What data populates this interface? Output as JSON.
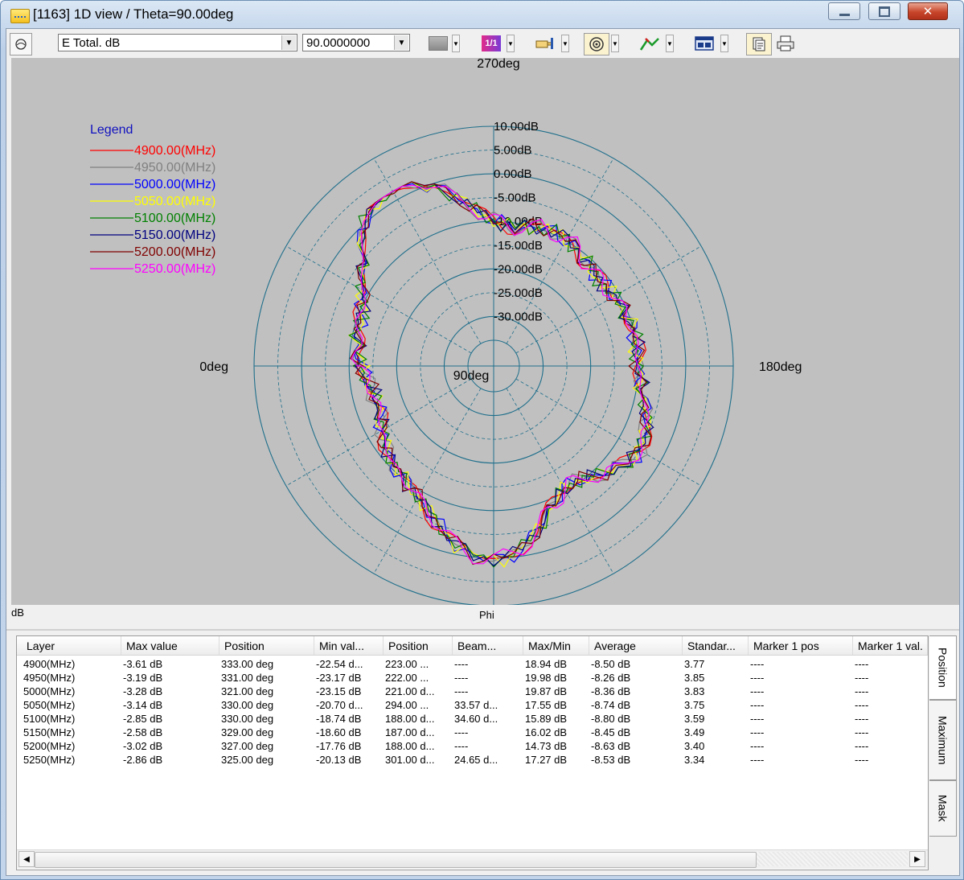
{
  "window": {
    "title": "[1163] 1D view / Theta=90.00deg"
  },
  "toolbar": {
    "quantity_value": "E Total. dB",
    "angle_value": "90.0000000",
    "scale_label": "1/1"
  },
  "plot": {
    "top_label": "270deg",
    "bottom_label": "90deg",
    "left_label": "0deg",
    "right_label": "180deg",
    "ring_labels": [
      "10.00dB",
      "5.00dB",
      "0.00dB",
      "-5.00dB",
      "-10.00dB",
      "-15.00dB",
      "-20.00dB",
      "-25.00dB",
      "-30.00dB"
    ],
    "legend_title": "Legend",
    "background_color": "#c0c0c0",
    "grid_color": "#1f6f8b"
  },
  "chart_data": {
    "type": "polar-line",
    "angle_axis": "Phi",
    "radial_unit": "dB",
    "radial_range": [
      -35,
      10
    ],
    "series": [
      {
        "name": "4900.00(MHz)",
        "color": "#ff0000"
      },
      {
        "name": "4950.00(MHz)",
        "color": "#808080"
      },
      {
        "name": "5000.00(MHz)",
        "color": "#0000ff"
      },
      {
        "name": "5050.00(MHz)",
        "color": "#ffff00"
      },
      {
        "name": "5100.00(MHz)",
        "color": "#008000"
      },
      {
        "name": "5150.00(MHz)",
        "color": "#000080"
      },
      {
        "name": "5200.00(MHz)",
        "color": "#800000"
      },
      {
        "name": "5250.00(MHz)",
        "color": "#ff00ff"
      }
    ]
  },
  "status": {
    "unit_label": "dB",
    "axis_label": "Phi"
  },
  "table": {
    "columns": [
      "Layer",
      "Max value",
      "Position",
      "Min val...",
      "Position",
      "Beam...",
      "Max/Min",
      "Average",
      "Standar...",
      "Marker 1 pos",
      "Marker 1 val."
    ],
    "rows": [
      [
        "4900(MHz)",
        "-3.61 dB",
        "333.00 deg",
        "-22.54 d...",
        "223.00 ...",
        "----",
        "18.94 dB",
        "-8.50 dB",
        "3.77",
        "----",
        "----"
      ],
      [
        "4950(MHz)",
        "-3.19 dB",
        "331.00 deg",
        "-23.17 dB",
        "222.00 ...",
        "----",
        "19.98 dB",
        "-8.26 dB",
        "3.85",
        "----",
        "----"
      ],
      [
        "5000(MHz)",
        "-3.28 dB",
        "321.00 deg",
        "-23.15 dB",
        "221.00 d...",
        "----",
        "19.87 dB",
        "-8.36 dB",
        "3.83",
        "----",
        "----"
      ],
      [
        "5050(MHz)",
        "-3.14 dB",
        "330.00 deg",
        "-20.70 d...",
        "294.00 ...",
        "33.57 d...",
        "17.55 dB",
        "-8.74 dB",
        "3.75",
        "----",
        "----"
      ],
      [
        "5100(MHz)",
        "-2.85 dB",
        "330.00 deg",
        "-18.74 dB",
        "188.00 d...",
        "34.60 d...",
        "15.89 dB",
        "-8.80 dB",
        "3.59",
        "----",
        "----"
      ],
      [
        "5150(MHz)",
        "-2.58 dB",
        "329.00 deg",
        "-18.60 dB",
        "187.00 d...",
        "----",
        "16.02 dB",
        "-8.45 dB",
        "3.49",
        "----",
        "----"
      ],
      [
        "5200(MHz)",
        "-3.02 dB",
        "327.00 deg",
        "-17.76 dB",
        "188.00 d...",
        "----",
        "14.73 dB",
        "-8.63 dB",
        "3.40",
        "----",
        "----"
      ],
      [
        "5250(MHz)",
        "-2.86 dB",
        "325.00 deg",
        "-20.13 dB",
        "301.00 d...",
        "24.65 d...",
        "17.27 dB",
        "-8.53 dB",
        "3.34",
        "----",
        "----"
      ]
    ]
  },
  "tabs": [
    "Position",
    "Maximum",
    "Mask"
  ]
}
